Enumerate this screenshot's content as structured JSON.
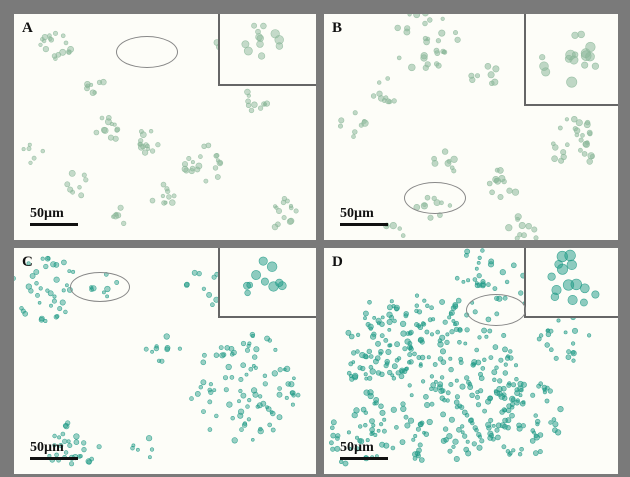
{
  "panels": [
    {
      "label": "A",
      "scale": "50µm"
    },
    {
      "label": "B",
      "scale": "50µm"
    },
    {
      "label": "C",
      "scale": "50µm"
    },
    {
      "label": "D",
      "scale": "50µm"
    }
  ],
  "colors": {
    "frame": "#7a7a7a",
    "background": "#fdfdf8",
    "stain_light": "#8cb89a",
    "stain_dark": "#1e9a86"
  }
}
